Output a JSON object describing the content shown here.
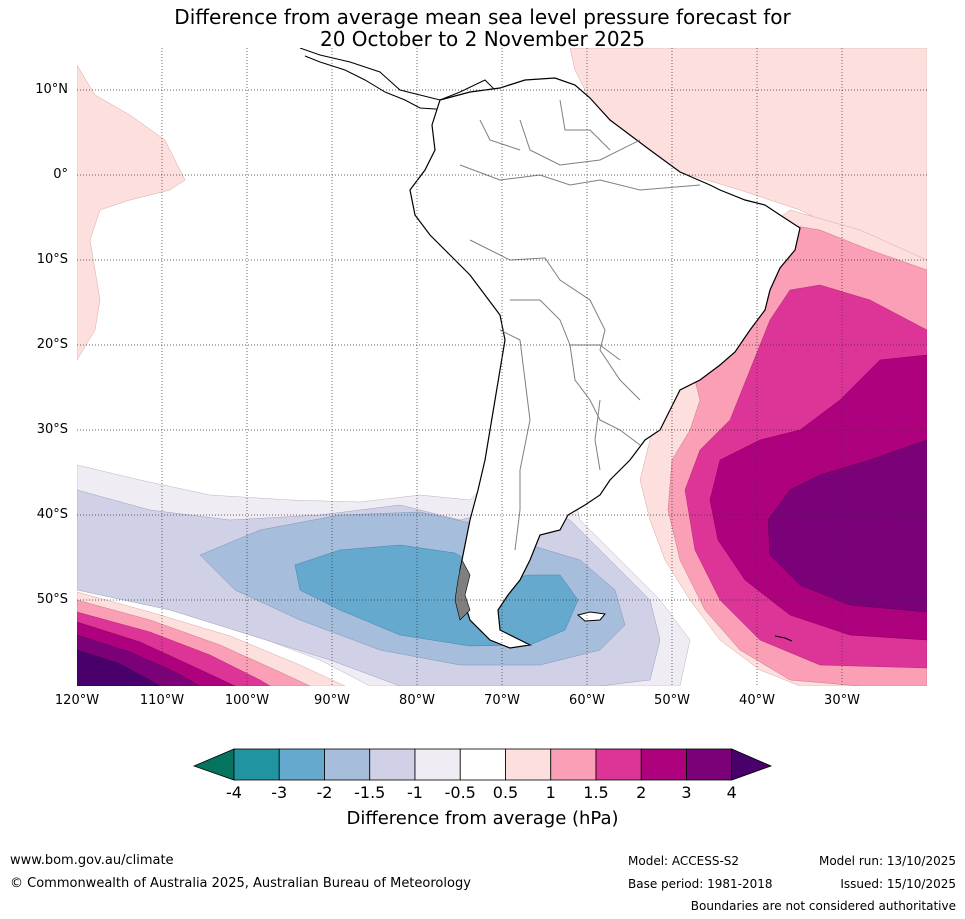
{
  "title_line1": "Difference from average mean sea level pressure forecast for",
  "title_line2": "20 October to 2 November 2025",
  "lat_labels": [
    "10°N",
    "0°",
    "10°S",
    "20°S",
    "30°S",
    "40°S",
    "50°S"
  ],
  "lon_labels": [
    "120°W",
    "110°W",
    "100°W",
    "90°W",
    "80°W",
    "70°W",
    "60°W",
    "50°W",
    "40°W",
    "30°W"
  ],
  "colorbar": {
    "title": "Difference from average (hPa)",
    "ticks": [
      "-4",
      "-3",
      "-2",
      "-1.5",
      "-1",
      "-0.5",
      "0.5",
      "1",
      "1.5",
      "2",
      "3",
      "4"
    ],
    "colors": [
      "#06735f",
      "#2094a0",
      "#66a9cf",
      "#a6bddb",
      "#d0d1e6",
      "#efecf3",
      "#ffffff",
      "#fde0dd",
      "#fa9fb5",
      "#dd3497",
      "#ae017e",
      "#7a0177",
      "#49006a"
    ]
  },
  "footer": {
    "website": "www.bom.gov.au/climate",
    "copyright": "© Commonwealth of Australia 2025, Australian Bureau of Meteorology",
    "model": "Model: ACCESS-S2",
    "base_period": "Base period: 1981-2018",
    "model_run": "Model run: 13/10/2025",
    "issued": "Issued: 15/10/2025",
    "disclaimer": "Boundaries are not considered authoritative"
  }
}
